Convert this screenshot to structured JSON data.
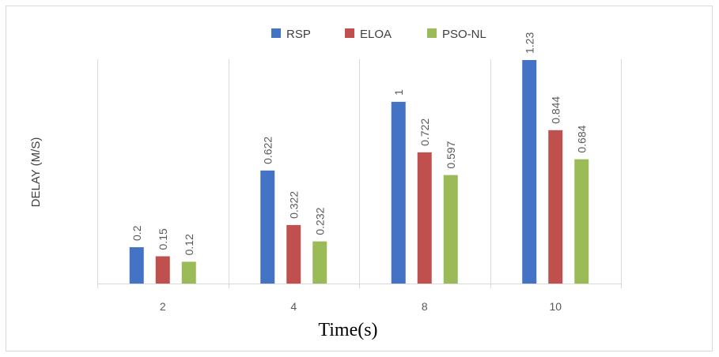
{
  "chart_data": {
    "type": "bar",
    "categories": [
      "2",
      "4",
      "8",
      "10"
    ],
    "series": [
      {
        "name": "RSP",
        "values": [
          0.2,
          0.622,
          1,
          1.23
        ],
        "labels": [
          "0.2",
          "0.622",
          "1",
          "1.23"
        ],
        "color": "#4472C4"
      },
      {
        "name": "ELOA",
        "values": [
          0.15,
          0.322,
          0.722,
          0.844
        ],
        "labels": [
          "0.15",
          "0.322",
          "0.722",
          "0.844"
        ],
        "color": "#C0504D"
      },
      {
        "name": "PSO-NL",
        "values": [
          0.12,
          0.232,
          0.597,
          0.684
        ],
        "labels": [
          "0.12",
          "0.232",
          "0.597",
          "0.684"
        ],
        "color": "#9BBB59"
      }
    ],
    "xlabel": "Time(s)",
    "ylabel": "DELAY (M/S)",
    "ylim": [
      0,
      1.4
    ],
    "grid": "vertical-category-separators",
    "legend": "top-center"
  }
}
